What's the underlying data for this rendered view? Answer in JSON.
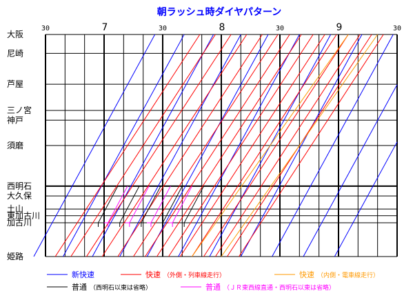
{
  "chart_data": {
    "type": "line",
    "title": "朝ラッシュ時ダイヤパターン",
    "x_ticks": [
      "30",
      "7",
      "30",
      "8",
      "30",
      "9",
      "30"
    ],
    "x_range_minutes": [
      390,
      570
    ],
    "stations": [
      {
        "name": "大阪",
        "pos": 0.0
      },
      {
        "name": "尼崎",
        "pos": 0.085
      },
      {
        "name": "芦屋",
        "pos": 0.224
      },
      {
        "name": "三ノ宮",
        "pos": 0.342
      },
      {
        "name": "神戸",
        "pos": 0.386
      },
      {
        "name": "須磨",
        "pos": 0.5
      },
      {
        "name": "西明石",
        "pos": 0.683
      },
      {
        "name": "大久保",
        "pos": 0.727
      },
      {
        "name": "土山",
        "pos": 0.786
      },
      {
        "name": "東加古川",
        "pos": 0.816
      },
      {
        "name": "加古川",
        "pos": 0.848
      },
      {
        "name": "姫路",
        "pos": 1.0
      }
    ],
    "grid": true,
    "minor_grid_minutes": 10,
    "series": [
      {
        "name": "新快速",
        "color": "#0000ff",
        "dep_origin": "姫路",
        "minutes_end_to_end": 62,
        "departures": [
          384,
          399,
          414,
          428,
          442,
          458,
          474,
          490,
          506,
          522,
          538
        ]
      },
      {
        "name": "快速",
        "note": "（外側・列車線走行）",
        "color": "#ff0000",
        "dep_origin": "姫路",
        "minutes_end_to_end": 74,
        "departures": [
          395,
          403,
          411,
          419,
          427,
          435,
          441,
          447,
          453,
          459,
          465,
          471,
          477,
          483,
          489
        ]
      },
      {
        "name": "快速",
        "note": "（内側・電車線走行）",
        "color": "#ff9900",
        "dep_origin": "姫路",
        "minutes_end_to_end": 80,
        "departures": [
          465,
          480
        ]
      },
      {
        "name": "普通",
        "note": "（西明石以東は省略）",
        "color": "#000000",
        "dep_origin": "加古川",
        "departures": [
          417,
          428,
          439,
          450,
          461
        ]
      },
      {
        "name": "普通",
        "note": "（ＪＲ東西線直通・西明石以東は省略）",
        "color": "#ff00ff",
        "dep_origin": "加古川",
        "departures": [
          422,
          433,
          444,
          455
        ]
      }
    ]
  },
  "legend": [
    {
      "label": "新快速",
      "note": "",
      "color": "#0000ff"
    },
    {
      "label": "快速",
      "note": "（外側・列車線走行）",
      "color": "#ff0000"
    },
    {
      "label": "快速",
      "note": "（内側・電車線走行）",
      "color": "#ff9900"
    },
    {
      "label": "普通",
      "note": "（西明石以東は省略）",
      "color": "#000000"
    },
    {
      "label": "普通",
      "note": "（ＪＲ東西線直通・西明石以東は省略）",
      "color": "#ff00ff"
    }
  ]
}
